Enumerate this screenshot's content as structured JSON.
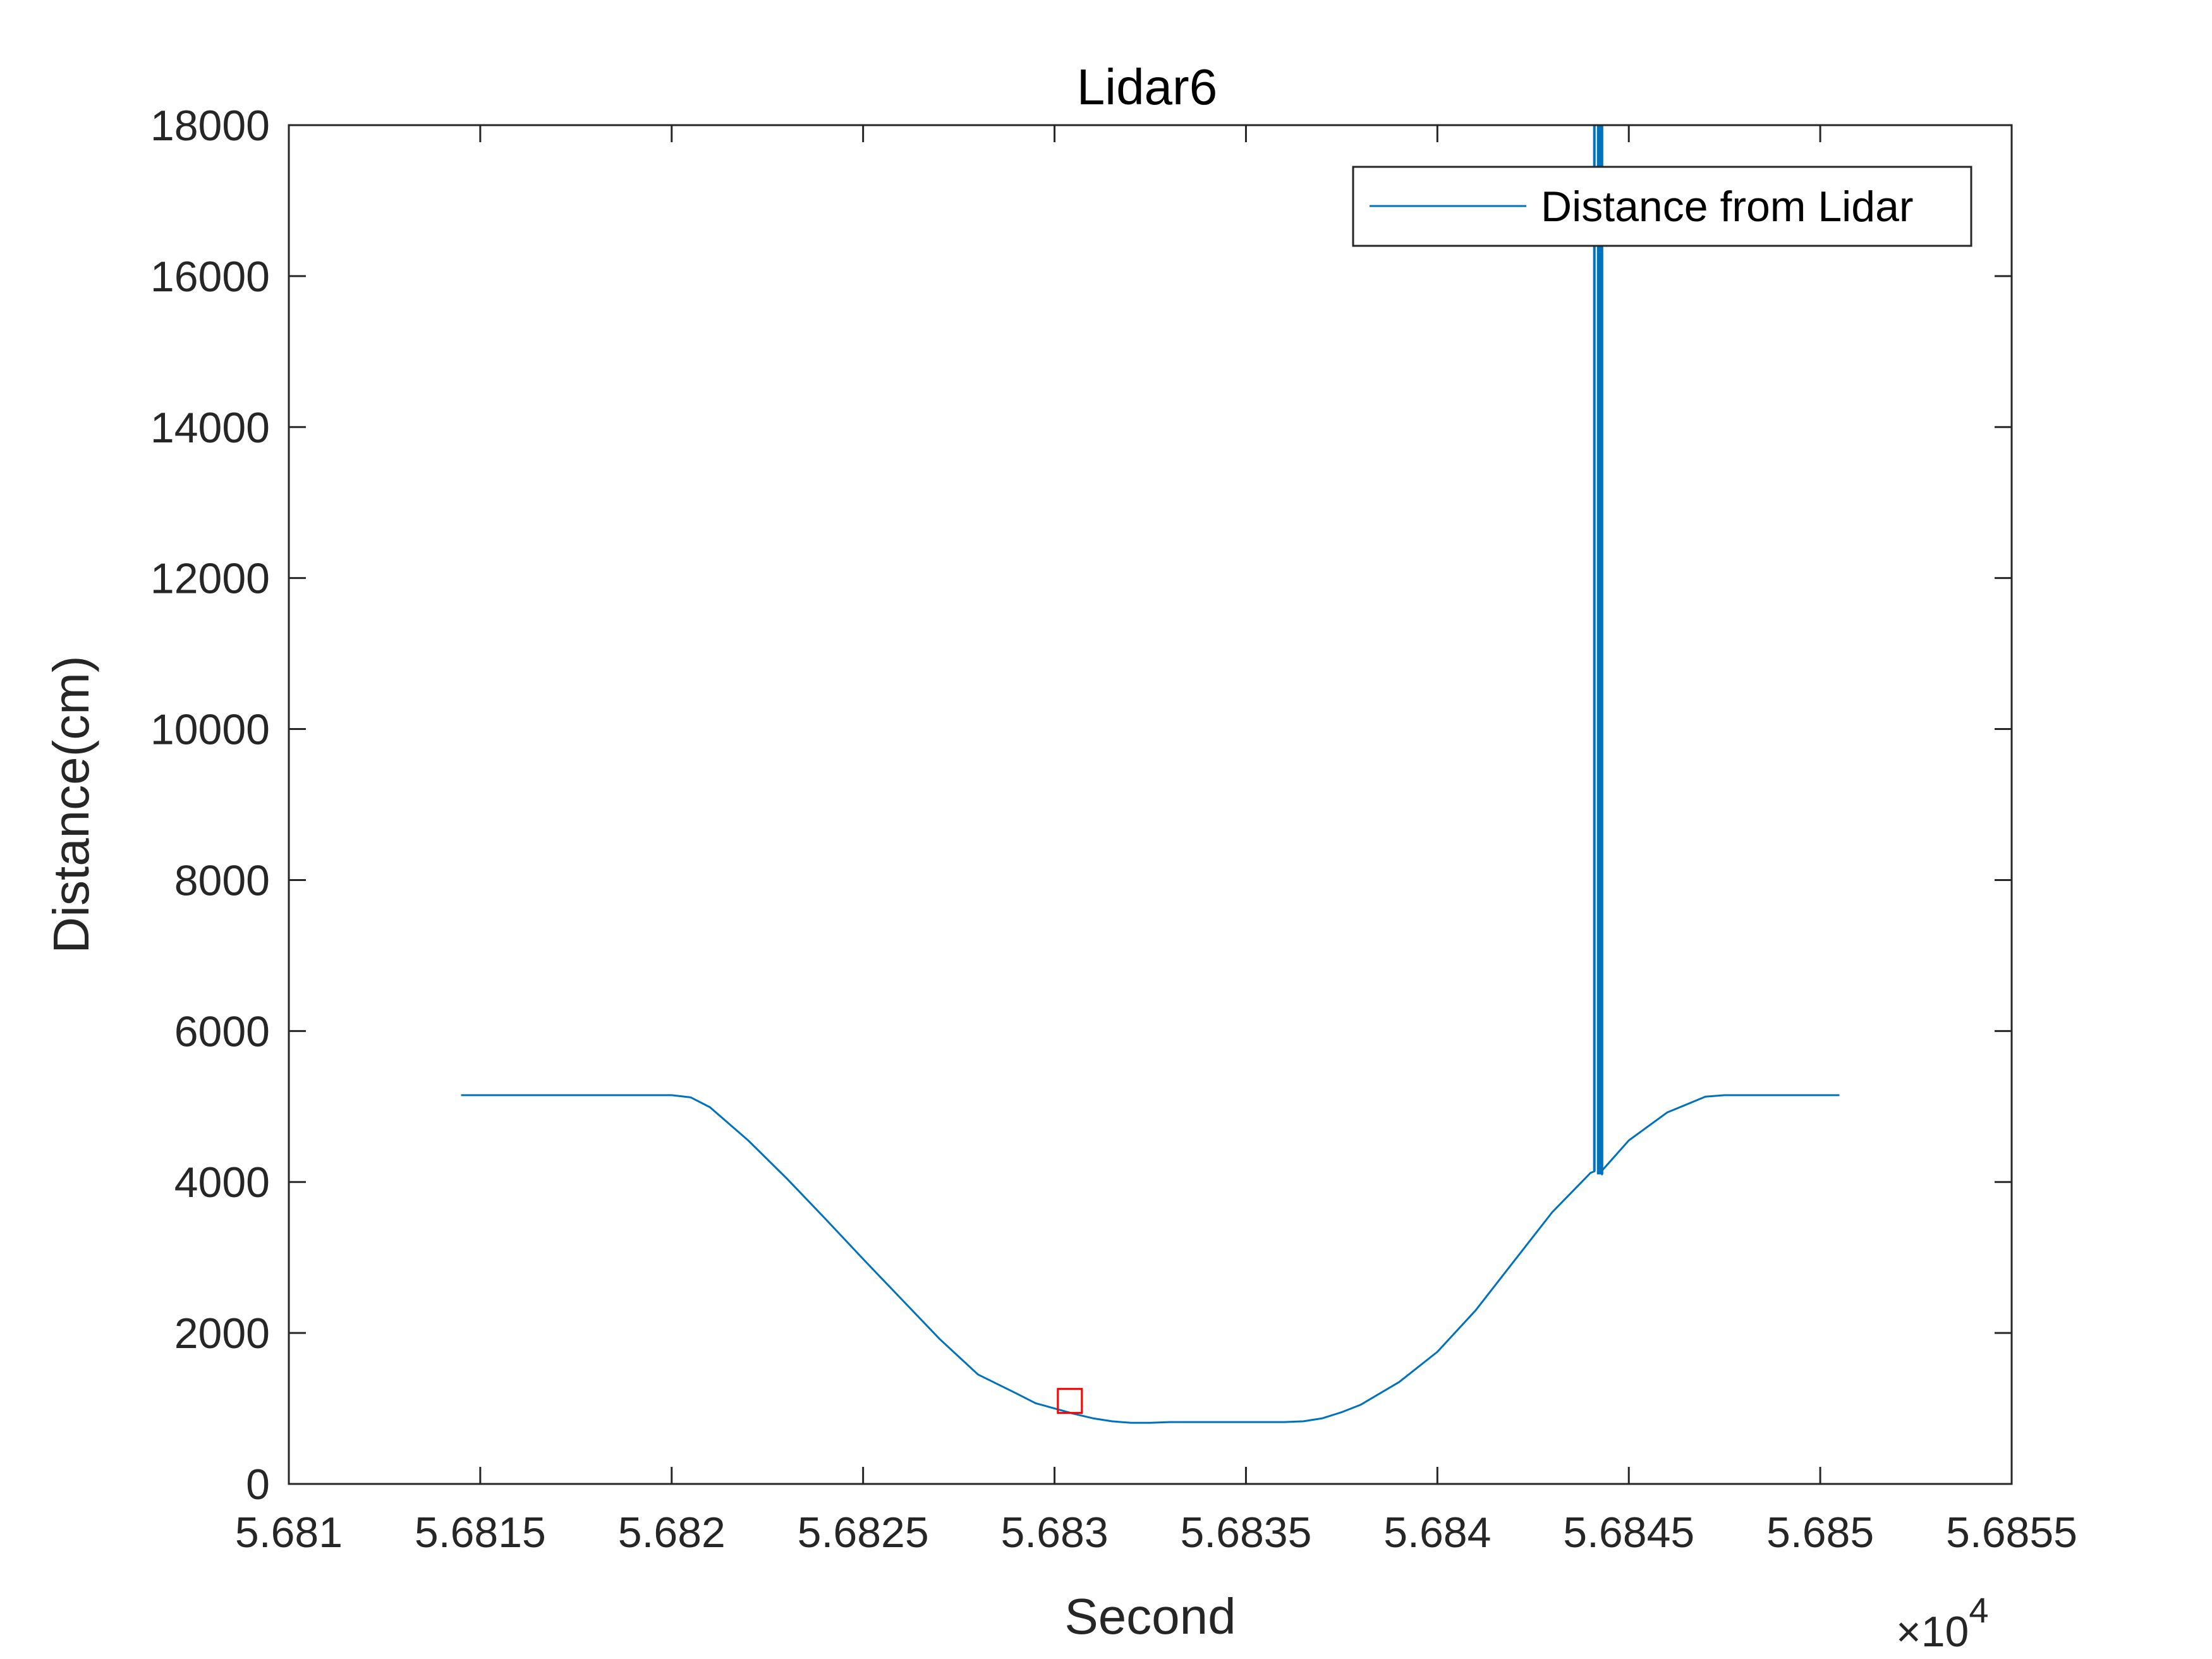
{
  "chart_data": {
    "type": "line",
    "title": "Lidar6",
    "xlabel": "Second",
    "ylabel": "Distance(cm)",
    "x_multiplier": "×10",
    "x_multiplier_exponent": "4",
    "xlim": [
      5.681,
      5.6855
    ],
    "ylim": [
      0,
      18000
    ],
    "x_ticks": [
      5.681,
      5.6815,
      5.682,
      5.6825,
      5.683,
      5.6835,
      5.684,
      5.6845,
      5.685,
      5.6855
    ],
    "x_tick_labels": [
      "5.681",
      "5.6815",
      "5.682",
      "5.6825",
      "5.683",
      "5.6835",
      "5.684",
      "5.6845",
      "5.685",
      "5.6855"
    ],
    "y_ticks": [
      0,
      2000,
      4000,
      6000,
      8000,
      10000,
      12000,
      14000,
      16000,
      18000
    ],
    "y_tick_labels": [
      "0",
      "2000",
      "4000",
      "6000",
      "8000",
      "10000",
      "12000",
      "14000",
      "16000",
      "18000"
    ],
    "grid": false,
    "legend_position": "top-right",
    "series": [
      {
        "name": "Distance from Lidar",
        "color": "#0072BD",
        "x": [
          5.68145,
          5.6816,
          5.6818,
          5.6819,
          5.682,
          5.68205,
          5.6821,
          5.6822,
          5.6823,
          5.6824,
          5.6825,
          5.6826,
          5.6827,
          5.6828,
          5.6829,
          5.68295,
          5.683,
          5.68305,
          5.6831,
          5.68315,
          5.6832,
          5.68325,
          5.6833,
          5.6834,
          5.6835,
          5.6836,
          5.68365,
          5.6837,
          5.68375,
          5.6838,
          5.6839,
          5.684,
          5.6841,
          5.6842,
          5.6843,
          5.6844,
          5.68441,
          5.68441,
          5.68442,
          5.68443,
          5.68443,
          5.6845,
          5.6846,
          5.6847,
          5.68475,
          5.6848,
          5.6849,
          5.685,
          5.68505
        ],
        "y": [
          5150,
          5150,
          5150,
          5150,
          5150,
          5120,
          4990,
          4550,
          4050,
          3520,
          2980,
          2450,
          1920,
          1450,
          1200,
          1070,
          1000,
          930,
          870,
          830,
          810,
          810,
          820,
          820,
          820,
          820,
          830,
          870,
          950,
          1050,
          1350,
          1750,
          2300,
          2950,
          3600,
          4120,
          4140,
          18000,
          18000,
          4100,
          4150,
          4550,
          4920,
          5130,
          5150,
          5150,
          5150,
          5150,
          5150
        ]
      }
    ],
    "annotations": [
      {
        "type": "marker",
        "shape": "square",
        "color": "#FF0000",
        "x": 5.68304,
        "y": 1100
      }
    ]
  }
}
